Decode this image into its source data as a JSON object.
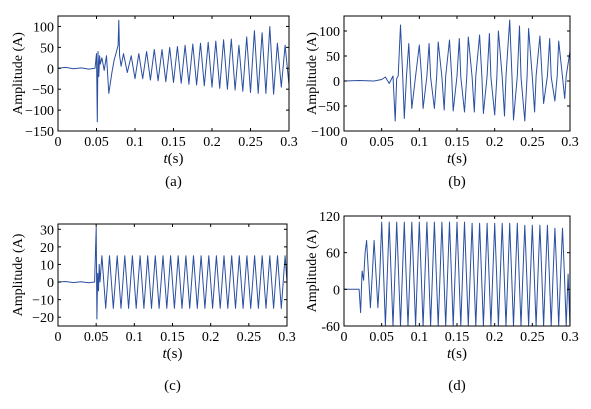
{
  "colors": {
    "trace": "#2a4fa0",
    "axis": "#000000",
    "background": "#ffffff"
  },
  "chart_data": [
    {
      "panel": "(a)",
      "type": "line",
      "xlabel": "t(s)",
      "ylabel": "Amplitude (A)",
      "xlim": [
        0,
        0.3
      ],
      "ylim": [
        -150,
        125
      ],
      "xticks": [
        0,
        0.05,
        0.1,
        0.15,
        0.2,
        0.25,
        0.3
      ],
      "xtick_labels": [
        "0",
        "0.05",
        "0.1",
        "0.15",
        "0.2",
        "0.25",
        "0.3"
      ],
      "yticks": [
        100,
        50,
        0,
        -50,
        -100,
        -150
      ],
      "ytick_labels": [
        "100",
        "50",
        "0",
        "−50",
        "−100",
        "−150"
      ],
      "series": [
        {
          "x": [
            0,
            0.01,
            0.02,
            0.03,
            0.04,
            0.048,
            0.05,
            0.051,
            0.052,
            0.053,
            0.054,
            0.055,
            0.057,
            0.06,
            0.063,
            0.066,
            0.07,
            0.073,
            0.076,
            0.078,
            0.079,
            0.08,
            0.082,
            0.085,
            0.09,
            0.095,
            0.1,
            0.105,
            0.11,
            0.115,
            0.12,
            0.125,
            0.13,
            0.135,
            0.14,
            0.145,
            0.15,
            0.155,
            0.16,
            0.165,
            0.17,
            0.175,
            0.18,
            0.185,
            0.19,
            0.195,
            0.2,
            0.205,
            0.21,
            0.215,
            0.22,
            0.225,
            0.23,
            0.235,
            0.24,
            0.245,
            0.25,
            0.255,
            0.26,
            0.265,
            0.27,
            0.275,
            0.28,
            0.285,
            0.29,
            0.295,
            0.3
          ],
          "y": [
            0,
            2,
            -1,
            1,
            -2,
            0,
            35,
            -128,
            40,
            -20,
            30,
            10,
            25,
            -5,
            30,
            -60,
            -10,
            20,
            40,
            55,
            115,
            30,
            5,
            35,
            -10,
            30,
            -25,
            35,
            -25,
            40,
            -28,
            45,
            -30,
            45,
            -32,
            50,
            -34,
            52,
            -36,
            55,
            -38,
            58,
            -40,
            60,
            -42,
            62,
            -45,
            65,
            -48,
            68,
            -50,
            70,
            -52,
            55,
            -55,
            75,
            -58,
            90,
            -60,
            85,
            -60,
            100,
            -62,
            60,
            -45,
            55,
            -40
          ]
        }
      ]
    },
    {
      "panel": "(b)",
      "type": "line",
      "xlabel": "t(s)",
      "ylabel": "Amplitude (A)",
      "xlim": [
        0,
        0.3
      ],
      "ylim": [
        -100,
        130
      ],
      "xticks": [
        0,
        0.05,
        0.1,
        0.15,
        0.2,
        0.25,
        0.3
      ],
      "xtick_labels": [
        "0",
        "0.05",
        "0.1",
        "0.15",
        "0.2",
        "0.25",
        "0.3"
      ],
      "yticks": [
        100,
        50,
        0,
        -50,
        -100
      ],
      "ytick_labels": [
        "100",
        "50",
        "0",
        "−50",
        "−100"
      ],
      "series": [
        {
          "x": [
            0,
            0.02,
            0.04,
            0.05,
            0.055,
            0.06,
            0.065,
            0.068,
            0.07,
            0.072,
            0.075,
            0.078,
            0.08,
            0.083,
            0.086,
            0.088,
            0.09,
            0.095,
            0.1,
            0.103,
            0.105,
            0.11,
            0.113,
            0.115,
            0.12,
            0.123,
            0.125,
            0.13,
            0.133,
            0.135,
            0.14,
            0.143,
            0.145,
            0.15,
            0.153,
            0.155,
            0.16,
            0.163,
            0.165,
            0.17,
            0.173,
            0.175,
            0.18,
            0.183,
            0.185,
            0.19,
            0.193,
            0.195,
            0.2,
            0.203,
            0.205,
            0.21,
            0.213,
            0.215,
            0.22,
            0.223,
            0.225,
            0.23,
            0.233,
            0.235,
            0.24,
            0.243,
            0.245,
            0.25,
            0.253,
            0.255,
            0.26,
            0.263,
            0.265,
            0.27,
            0.273,
            0.275,
            0.28,
            0.283,
            0.285,
            0.29,
            0.293,
            0.295,
            0.3
          ],
          "y": [
            0,
            1,
            0,
            3,
            8,
            -5,
            10,
            -80,
            5,
            10,
            112,
            5,
            -75,
            10,
            75,
            8,
            -55,
            10,
            72,
            8,
            -55,
            10,
            75,
            8,
            -55,
            10,
            78,
            8,
            -58,
            10,
            82,
            8,
            -60,
            10,
            85,
            8,
            -62,
            10,
            88,
            8,
            -62,
            10,
            92,
            8,
            -65,
            10,
            95,
            8,
            -68,
            10,
            100,
            8,
            -70,
            10,
            122,
            8,
            -78,
            10,
            110,
            8,
            -80,
            10,
            105,
            8,
            -62,
            10,
            90,
            8,
            -45,
            10,
            85,
            8,
            -40,
            10,
            80,
            8,
            -35,
            10,
            60
          ]
        }
      ]
    },
    {
      "panel": "(c)",
      "type": "line",
      "xlabel": "t(s)",
      "ylabel": "Amplitude (A)",
      "xlim": [
        0,
        0.3
      ],
      "ylim": [
        -25,
        33
      ],
      "xticks": [
        0,
        0.05,
        0.1,
        0.15,
        0.2,
        0.25,
        0.3
      ],
      "xtick_labels": [
        "0",
        "0.05",
        "0.1",
        "0.15",
        "0.2",
        "0.25",
        "0.3"
      ],
      "yticks": [
        30,
        20,
        10,
        0,
        -10,
        -20
      ],
      "ytick_labels": [
        "30",
        "20",
        "10",
        "0",
        "−10",
        "−20"
      ],
      "series": [
        {
          "x": [
            0,
            0.01,
            0.02,
            0.03,
            0.04,
            0.048,
            0.05,
            0.051,
            0.052,
            0.053,
            0.054,
            0.055,
            0.0575,
            0.06,
            0.0625,
            0.065,
            0.0675,
            0.07,
            0.0725,
            0.075,
            0.0775,
            0.08,
            0.0825,
            0.085,
            0.0875,
            0.09,
            0.0925,
            0.095,
            0.0975,
            0.1,
            0.1025,
            0.105,
            0.1075,
            0.11,
            0.1125,
            0.115,
            0.1175,
            0.12,
            0.1225,
            0.125,
            0.1275,
            0.13,
            0.1325,
            0.135,
            0.1375,
            0.14,
            0.1425,
            0.145,
            0.1475,
            0.15,
            0.1525,
            0.155,
            0.1575,
            0.16,
            0.1625,
            0.165,
            0.1675,
            0.17,
            0.1725,
            0.175,
            0.1775,
            0.18,
            0.1825,
            0.185,
            0.1875,
            0.19,
            0.1925,
            0.195,
            0.1975,
            0.2,
            0.2025,
            0.205,
            0.2075,
            0.21,
            0.2125,
            0.215,
            0.2175,
            0.22,
            0.2225,
            0.225,
            0.2275,
            0.23,
            0.2325,
            0.235,
            0.2375,
            0.24,
            0.2425,
            0.245,
            0.2475,
            0.25,
            0.2525,
            0.255,
            0.2575,
            0.26,
            0.2625,
            0.265,
            0.2675,
            0.27,
            0.2725,
            0.275,
            0.2775,
            0.28,
            0.2825,
            0.285,
            0.2875,
            0.29,
            0.2925,
            0.295,
            0.2975,
            0.3
          ],
          "y": [
            0,
            0.3,
            -0.3,
            0.2,
            -0.4,
            0,
            31,
            -21,
            5,
            -5,
            10,
            0,
            15,
            0,
            -15,
            0,
            15,
            0,
            -15,
            0,
            15,
            0,
            -15,
            0,
            15,
            0,
            -15,
            0,
            15,
            0,
            -15,
            0,
            15,
            0,
            -15,
            0,
            15,
            0,
            -15,
            0,
            15,
            0,
            -15,
            0,
            15,
            0,
            -15,
            0,
            15,
            0,
            -15,
            0,
            15,
            0,
            -15,
            0,
            15,
            0,
            -15,
            0,
            15,
            0,
            -15,
            0,
            15,
            0,
            -15,
            0,
            15,
            0,
            -15,
            0,
            15,
            0,
            -15,
            0,
            15,
            0,
            -15,
            0,
            15,
            0,
            -15,
            0,
            15,
            0,
            -15,
            0,
            15,
            0,
            -15,
            0,
            15,
            0,
            -15,
            0,
            15,
            0,
            -15,
            0,
            15,
            0,
            -15,
            0,
            15,
            0,
            -15,
            0,
            15,
            0
          ]
        }
      ]
    },
    {
      "panel": "(d)",
      "type": "line",
      "xlabel": "t(s)",
      "ylabel": "Amplitude (A)",
      "xlim": [
        0,
        0.3
      ],
      "ylim": [
        -60,
        120
      ],
      "xticks": [
        0,
        0.05,
        0.1,
        0.15,
        0.2,
        0.25,
        0.3
      ],
      "xtick_labels": [
        "0",
        "0.05",
        "0.1",
        "0.15",
        "0.2",
        "0.25",
        "0.3"
      ],
      "yticks": [
        120,
        60,
        0,
        -60
      ],
      "ytick_labels": [
        "120",
        "60",
        "0",
        "-60"
      ],
      "series": [
        {
          "x": [
            0,
            0.01,
            0.02,
            0.022,
            0.024,
            0.026,
            0.028,
            0.03,
            0.0325,
            0.035,
            0.0375,
            0.04,
            0.0425,
            0.045,
            0.0475,
            0.05,
            0.0525,
            0.055,
            0.0575,
            0.06,
            0.0625,
            0.065,
            0.0675,
            0.07,
            0.0725,
            0.075,
            0.0775,
            0.08,
            0.0825,
            0.085,
            0.0875,
            0.09,
            0.0925,
            0.095,
            0.0975,
            0.1,
            0.1025,
            0.105,
            0.1075,
            0.11,
            0.1125,
            0.115,
            0.1175,
            0.12,
            0.1225,
            0.125,
            0.1275,
            0.13,
            0.1325,
            0.135,
            0.1375,
            0.14,
            0.1425,
            0.145,
            0.1475,
            0.15,
            0.1525,
            0.155,
            0.1575,
            0.16,
            0.1625,
            0.165,
            0.1675,
            0.17,
            0.1725,
            0.175,
            0.1775,
            0.18,
            0.1825,
            0.185,
            0.1875,
            0.19,
            0.1925,
            0.195,
            0.1975,
            0.2,
            0.2025,
            0.205,
            0.2075,
            0.21,
            0.2125,
            0.215,
            0.2175,
            0.22,
            0.2225,
            0.225,
            0.2275,
            0.23,
            0.2325,
            0.235,
            0.2375,
            0.24,
            0.2425,
            0.245,
            0.2475,
            0.25,
            0.2525,
            0.255,
            0.2575,
            0.26,
            0.2625,
            0.265,
            0.2675,
            0.27,
            0.2725,
            0.275,
            0.2775,
            0.28,
            0.2825,
            0.285,
            0.2875,
            0.29,
            0.2925,
            0.295,
            0.2975,
            0.3
          ],
          "y": [
            0,
            0,
            0,
            -38,
            30,
            15,
            60,
            80,
            25,
            -30,
            25,
            80,
            25,
            -30,
            25,
            110,
            25,
            -60,
            25,
            110,
            25,
            -60,
            25,
            110,
            25,
            -60,
            25,
            110,
            25,
            -60,
            25,
            110,
            25,
            -60,
            25,
            110,
            25,
            -60,
            25,
            110,
            25,
            -60,
            25,
            110,
            25,
            -60,
            25,
            110,
            25,
            -60,
            25,
            110,
            25,
            -60,
            25,
            110,
            25,
            -60,
            25,
            110,
            25,
            -60,
            25,
            108,
            25,
            -60,
            25,
            108,
            25,
            -60,
            25,
            108,
            25,
            -60,
            25,
            108,
            25,
            -60,
            25,
            108,
            25,
            -60,
            25,
            108,
            25,
            -60,
            25,
            108,
            25,
            -60,
            25,
            105,
            25,
            -60,
            25,
            105,
            25,
            -60,
            25,
            105,
            25,
            -60,
            25,
            105,
            25,
            -60,
            25,
            100,
            25,
            -60,
            25,
            100,
            25,
            -60,
            25,
            -60
          ]
        }
      ]
    }
  ]
}
